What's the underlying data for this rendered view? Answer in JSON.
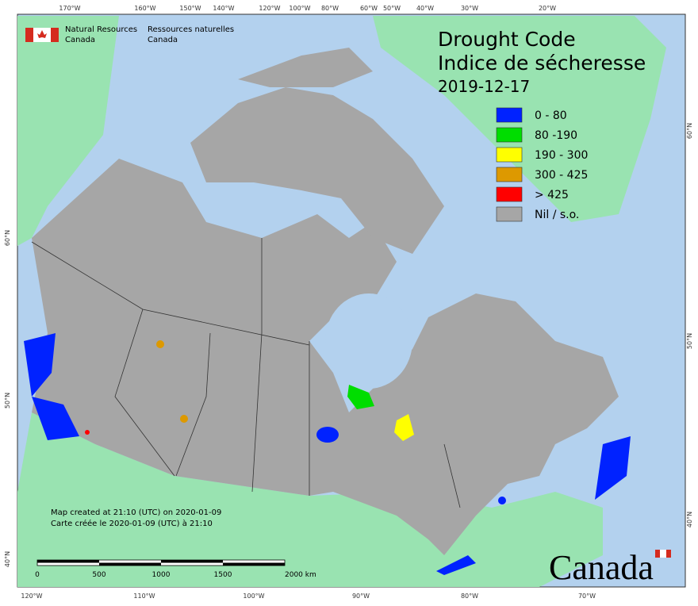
{
  "header": {
    "title_en": "Drought Code",
    "title_fr": "Indice de sécheresse",
    "date": "2019-12-17"
  },
  "agency": {
    "en_line1": "Natural Resources",
    "en_line2": "Canada",
    "fr_line1": "Ressources naturelles",
    "fr_line2": "Canada"
  },
  "legend": {
    "items": [
      {
        "label": "0 - 80",
        "color": "#0022ff"
      },
      {
        "label": "80 -190",
        "color": "#00dd00"
      },
      {
        "label": "190 - 300",
        "color": "#ffff00"
      },
      {
        "label": "300 - 425",
        "color": "#dd9900"
      },
      {
        "label": "> 425",
        "color": "#ff0000"
      },
      {
        "label": "Nil / s.o.",
        "color": "#a6a6a6"
      }
    ]
  },
  "axes": {
    "top": [
      "170°W",
      "160°W",
      "150°W",
      "140°W",
      "120°W",
      "100°W",
      "80°W",
      "60°W",
      "50°W",
      "40°W",
      "30°W",
      "20°W"
    ],
    "bottom": [
      "120°W",
      "110°W",
      "100°W",
      "90°W",
      "80°W",
      "70°W"
    ],
    "left": [
      "60°N",
      "50°N",
      "40°N"
    ],
    "right": [
      "60°N",
      "50°N",
      "40°N"
    ]
  },
  "notes": {
    "created_en": "Map created at 21:10 (UTC) on 2020-01-09",
    "created_fr": "Carte créée le 2020-01-09 (UTC) à 21:10"
  },
  "scale_bar": {
    "labels": [
      "0",
      "500",
      "1000",
      "1500",
      "2000  km"
    ]
  },
  "wordmark": "Canada"
}
